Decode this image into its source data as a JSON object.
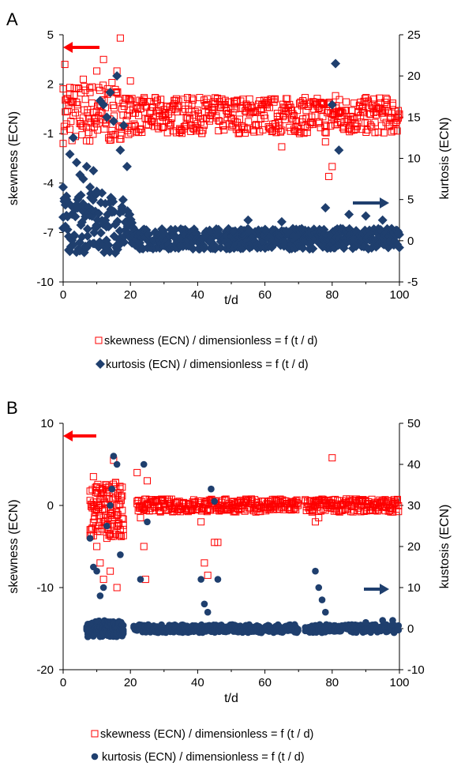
{
  "chart_data": [
    {
      "panel": "A",
      "type": "scatter",
      "xlabel": "t/d",
      "ylabel": "skewness (ECN)",
      "y2label": "kurtosis (ECN)",
      "xlim": [
        0,
        100
      ],
      "ylim": [
        -10,
        5
      ],
      "y2lim": [
        -5,
        25
      ],
      "xticks": [
        0,
        20,
        40,
        60,
        80,
        100
      ],
      "yticks": [
        -10,
        -7,
        -4,
        -1,
        2,
        5
      ],
      "y2ticks": [
        -5,
        0,
        5,
        10,
        15,
        20,
        25
      ],
      "grid": false,
      "legend_position": "bottom",
      "colors": {
        "skewness": "#ff0000",
        "kurtosis": "#1f3f6e"
      },
      "series": [
        {
          "name": "skewness (ECN) / dimensionless = f (t / d)",
          "axis": "left",
          "marker": "open-square",
          "band": [
            [
              0,
              -1.6,
              2.0
            ],
            [
              14,
              -1.7,
              2.2
            ],
            [
              20,
              -1.0,
              1.2
            ],
            [
              100,
              -1.0,
              1.2
            ]
          ],
          "outliers": [
            [
              0.5,
              3.2
            ],
            [
              2,
              1.8
            ],
            [
              6,
              2.3
            ],
            [
              8,
              1.5
            ],
            [
              10,
              2.8
            ],
            [
              12,
              3.5
            ],
            [
              14,
              1.5
            ],
            [
              16,
              2.8
            ],
            [
              17,
              4.8
            ],
            [
              20,
              2.2
            ],
            [
              65,
              -1.8
            ],
            [
              78,
              -1.5
            ],
            [
              79,
              -3.6
            ],
            [
              80,
              -3.0
            ],
            [
              81,
              1.3
            ],
            [
              82,
              0.3
            ]
          ]
        },
        {
          "name": "kurtosis (ECN)  / dimensionless = f (t / d)",
          "axis": "right",
          "marker": "filled-diamond",
          "band": [
            [
              0,
              -1.5,
              5.5
            ],
            [
              18,
              -1.5,
              6.0
            ],
            [
              21,
              -1.0,
              1.5
            ],
            [
              100,
              -1.0,
              1.5
            ]
          ],
          "outliers": [
            [
              0,
              6.5
            ],
            [
              1,
              5.0
            ],
            [
              2,
              10.5
            ],
            [
              3,
              12.5
            ],
            [
              4,
              9.5
            ],
            [
              5,
              8.0
            ],
            [
              6,
              7.5
            ],
            [
              7,
              9.0
            ],
            [
              8,
              6.5
            ],
            [
              9,
              8.5
            ],
            [
              10,
              6.0
            ],
            [
              11,
              17.0
            ],
            [
              12,
              16.5
            ],
            [
              13,
              15.0
            ],
            [
              14,
              18.0
            ],
            [
              15,
              14.5
            ],
            [
              16,
              20.0
            ],
            [
              17,
              11.0
            ],
            [
              18,
              14.0
            ],
            [
              19,
              9.0
            ],
            [
              55,
              2.5
            ],
            [
              65,
              2.3
            ],
            [
              78,
              4.0
            ],
            [
              80,
              16.5
            ],
            [
              81,
              21.5
            ],
            [
              82,
              11.0
            ],
            [
              85,
              3.2
            ],
            [
              90,
              3.0
            ],
            [
              95,
              2.5
            ]
          ]
        }
      ]
    },
    {
      "panel": "B",
      "type": "scatter",
      "xlabel": "t/d",
      "ylabel": "skewness (ECN)",
      "y2label": "kustosis (ECN)",
      "xlim": [
        0,
        100
      ],
      "ylim": [
        -20,
        10
      ],
      "y2lim": [
        -10,
        50
      ],
      "xticks": [
        0,
        20,
        40,
        60,
        80,
        100
      ],
      "yticks": [
        -20,
        -10,
        0,
        10
      ],
      "y2ticks": [
        -10,
        0,
        10,
        20,
        30,
        40,
        50
      ],
      "grid": false,
      "legend_position": "bottom",
      "colors": {
        "skewness": "#ff0000",
        "kurtosis": "#1f3f6e"
      },
      "series": [
        {
          "name": "skewness (ECN) / dimensionless = f (t   / d)",
          "axis": "left",
          "marker": "open-square",
          "segments": [
            [
              8,
              18
            ],
            [
              22,
              70
            ],
            [
              72,
              100
            ]
          ],
          "band": [
            -0.8,
            0.8
          ],
          "outliers": [
            [
              9,
              3.5
            ],
            [
              10,
              -5
            ],
            [
              11,
              -7
            ],
            [
              12,
              -9
            ],
            [
              13,
              -4
            ],
            [
              14,
              -8
            ],
            [
              15,
              5.5
            ],
            [
              16,
              -10
            ],
            [
              17,
              -3
            ],
            [
              22,
              4
            ],
            [
              23,
              -1.5
            ],
            [
              24,
              -5
            ],
            [
              25,
              3
            ],
            [
              24.5,
              -9
            ],
            [
              41,
              -2
            ],
            [
              42,
              -7
            ],
            [
              43,
              -8.5
            ],
            [
              45,
              -4.5
            ],
            [
              46,
              -4.5
            ],
            [
              74,
              -0.8
            ],
            [
              75,
              -2
            ],
            [
              76,
              -1.5
            ],
            [
              80,
              5.8
            ]
          ]
        },
        {
          "name": "kurtosis (ECN)  / dimensionless = f (t   / d)",
          "axis": "right",
          "marker": "filled-circle",
          "segments": [
            [
              7,
              18
            ],
            [
              21,
              70
            ],
            [
              72,
              100
            ]
          ],
          "band": [
            -1.0,
            1.0
          ],
          "outliers": [
            [
              8,
              22
            ],
            [
              9,
              15
            ],
            [
              10,
              14
            ],
            [
              11,
              8
            ],
            [
              12,
              10
            ],
            [
              13,
              25
            ],
            [
              14,
              30
            ],
            [
              15,
              42
            ],
            [
              16,
              40
            ],
            [
              17,
              18
            ],
            [
              14.5,
              34
            ],
            [
              23,
              12
            ],
            [
              24,
              40
            ],
            [
              25,
              26
            ],
            [
              41,
              12
            ],
            [
              42,
              6
            ],
            [
              43,
              4
            ],
            [
              44,
              34
            ],
            [
              45,
              31
            ],
            [
              46,
              12
            ],
            [
              75,
              14
            ],
            [
              76,
              10
            ],
            [
              77,
              7
            ],
            [
              78,
              4
            ],
            [
              90,
              1.5
            ],
            [
              95,
              2.0
            ],
            [
              98,
              2.0
            ]
          ]
        }
      ]
    }
  ]
}
